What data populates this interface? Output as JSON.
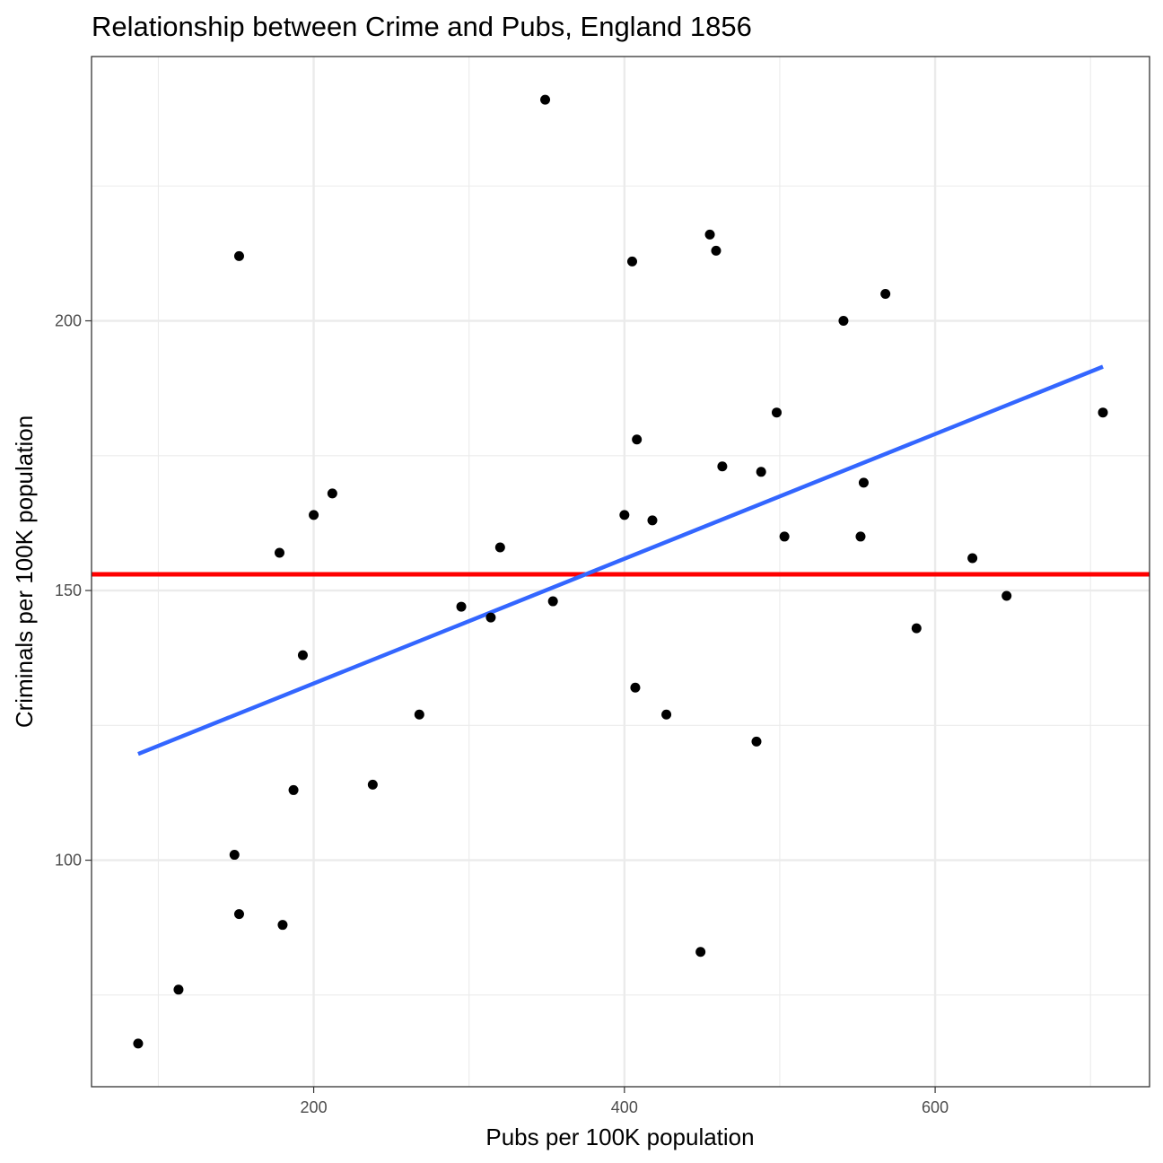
{
  "chart_data": {
    "type": "scatter",
    "title": "Relationship between Crime and Pubs, England 1856",
    "xlabel": "Pubs per 100K population",
    "ylabel": "Criminals per 100K population",
    "xlim": [
      57,
      738
    ],
    "ylim": [
      58,
      249
    ],
    "x_ticks": {
      "major": [
        200,
        400,
        600
      ],
      "labels": [
        "200",
        "400",
        "600"
      ],
      "minor": [
        100,
        300,
        500,
        700
      ]
    },
    "y_ticks": {
      "major": [
        100,
        150,
        200
      ],
      "labels": [
        "100",
        "150",
        "200"
      ],
      "minor": [
        75,
        125,
        175,
        225
      ]
    },
    "grid": true,
    "legend": "none",
    "points": {
      "color": "#000000",
      "x": [
        87,
        113,
        149,
        152,
        152,
        178,
        180,
        187,
        193,
        200,
        212,
        238,
        268,
        295,
        314,
        320,
        349,
        354,
        400,
        405,
        407,
        408,
        418,
        427,
        449,
        455,
        459,
        463,
        485,
        488,
        498,
        503,
        541,
        552,
        554,
        568,
        588,
        624,
        646,
        708
      ],
      "y": [
        66,
        76,
        101,
        90,
        212,
        157,
        88,
        113,
        138,
        164,
        168,
        114,
        127,
        147,
        145,
        158,
        241,
        148,
        164,
        211,
        132,
        178,
        163,
        127,
        83,
        216,
        213,
        173,
        122,
        172,
        183,
        160,
        200,
        160,
        170,
        205,
        143,
        156,
        149,
        183
      ]
    },
    "reference_line": {
      "type": "horizontal",
      "y": 153,
      "color": "#ff0000"
    },
    "fit_line": {
      "type": "linear",
      "x": [
        87,
        708
      ],
      "y": [
        119.7,
        191.5
      ],
      "color": "#3366ff"
    }
  }
}
